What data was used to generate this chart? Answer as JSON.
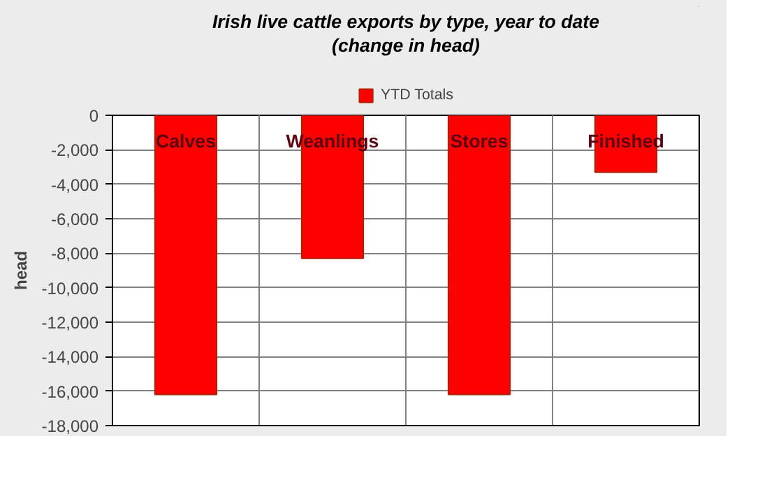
{
  "chart_data": {
    "type": "bar",
    "title": "Irish live cattle exports by type, year to date\n(change in head)",
    "ylabel": "head",
    "categories": [
      "Calves",
      "Weanlings",
      "Stores",
      "Finished"
    ],
    "series": [
      {
        "name": "YTD Totals",
        "color": "#ff0000",
        "values": [
          -16200,
          -8300,
          -16200,
          -3300
        ]
      }
    ],
    "ylim": [
      -18000,
      0
    ],
    "yticks": [
      {
        "value": -18000,
        "label": "-18,000"
      },
      {
        "value": -16000,
        "label": "-16,000"
      },
      {
        "value": -14000,
        "label": "-14,000"
      },
      {
        "value": -12000,
        "label": "-12,000"
      },
      {
        "value": -10000,
        "label": "-10,000"
      },
      {
        "value": -8000,
        "label": "-8,000"
      },
      {
        "value": -6000,
        "label": "-6,000"
      },
      {
        "value": -4000,
        "label": "-4,000"
      },
      {
        "value": -2000,
        "label": "-2,000"
      },
      0
    ],
    "grid": true,
    "legend": "top"
  }
}
